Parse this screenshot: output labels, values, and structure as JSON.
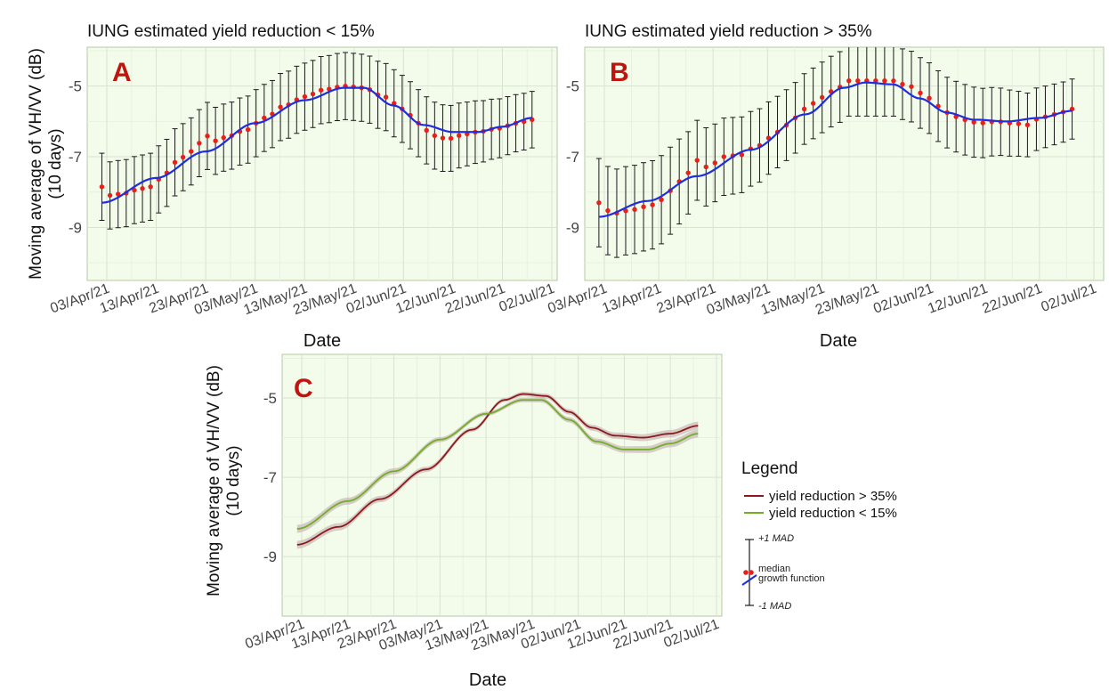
{
  "colors": {
    "panel_bg": "#f3fbea",
    "grid_major": "#d9e3d2",
    "grid_minor": "#e8f0e1",
    "panel_border": "#b4c8a6",
    "median_point": "#e8201a",
    "growth_line": "#1f2de0",
    "error_bar": "#1a1a1a",
    "panel_letter": "#c0140f",
    "series_gt35": "#8b1a1a",
    "series_lt15": "#72ad28",
    "ribbon": "#c9b8b8"
  },
  "shared": {
    "ylabel_line1": "Moving average of VH/VV (dB)",
    "ylabel_line2": "(10 days)",
    "xlabel": "Date"
  },
  "chart_data": [
    {
      "panel": "A",
      "type": "scatter",
      "title": "IUNG estimated yield reduction < 15%",
      "xlabel": "Date",
      "ylabel": "Moving average of VH/VV (dB) (10 days)",
      "x_ticks": [
        "03/Apr/21",
        "13/Apr/21",
        "23/Apr/21",
        "03/May/21",
        "13/May/21",
        "23/May/21",
        "02/Jun/21",
        "12/Jun/21",
        "22/Jun/21",
        "02/Jul/21"
      ],
      "y_ticks": [
        -5,
        -7,
        -9
      ],
      "x_range_days": [
        0,
        90
      ],
      "ylim": [
        -10.5,
        -3.9
      ],
      "median_knots": [
        [
          -1,
          -7.85
        ],
        [
          0,
          -8.1
        ],
        [
          3,
          -8.05
        ],
        [
          7,
          -7.9
        ],
        [
          9,
          -7.85
        ],
        [
          11,
          -7.6
        ],
        [
          14,
          -7.15
        ],
        [
          17,
          -6.85
        ],
        [
          19,
          -6.6
        ],
        [
          20,
          -6.4
        ],
        [
          22,
          -6.55
        ],
        [
          24,
          -6.45
        ],
        [
          28,
          -6.25
        ],
        [
          32,
          -5.9
        ],
        [
          36,
          -5.55
        ],
        [
          40,
          -5.3
        ],
        [
          44,
          -5.1
        ],
        [
          48,
          -5.0
        ],
        [
          52,
          -5.05
        ],
        [
          56,
          -5.3
        ],
        [
          60,
          -5.65
        ],
        [
          63,
          -6.05
        ],
        [
          66,
          -6.4
        ],
        [
          69,
          -6.5
        ],
        [
          71,
          -6.4
        ],
        [
          75,
          -6.3
        ],
        [
          79,
          -6.2
        ],
        [
          83,
          -6.05
        ],
        [
          86,
          -5.95
        ]
      ],
      "growth_knots": [
        [
          -1,
          -8.3
        ],
        [
          10,
          -7.6
        ],
        [
          20,
          -6.85
        ],
        [
          30,
          -6.05
        ],
        [
          40,
          -5.4
        ],
        [
          48,
          -5.05
        ],
        [
          52,
          -5.05
        ],
        [
          58,
          -5.55
        ],
        [
          64,
          -6.1
        ],
        [
          70,
          -6.3
        ],
        [
          75,
          -6.3
        ],
        [
          80,
          -6.15
        ],
        [
          86,
          -5.9
        ]
      ],
      "mad_knots": [
        [
          -1,
          0.95
        ],
        [
          20,
          0.95
        ],
        [
          45,
          0.95
        ],
        [
          65,
          0.95
        ],
        [
          86,
          0.8
        ]
      ],
      "n_points": 54,
      "error_bar_start_index": 0
    },
    {
      "panel": "B",
      "type": "scatter",
      "title": "IUNG estimated yield reduction > 35%",
      "xlabel": "Date",
      "ylabel": "Moving average of VH/VV (dB) (10 days)",
      "x_ticks": [
        "03/Apr/21",
        "13/Apr/21",
        "23/Apr/21",
        "03/May/21",
        "13/May/21",
        "23/May/21",
        "02/Jun/21",
        "12/Jun/21",
        "22/Jun/21",
        "02/Jul/21"
      ],
      "y_ticks": [
        -5,
        -7,
        -9
      ],
      "x_range_days": [
        0,
        90
      ],
      "ylim": [
        -10.5,
        -3.9
      ],
      "median_knots": [
        [
          -1,
          -8.3
        ],
        [
          0,
          -8.5
        ],
        [
          2,
          -8.6
        ],
        [
          5,
          -8.5
        ],
        [
          8,
          -8.4
        ],
        [
          11,
          -8.2
        ],
        [
          13,
          -7.8
        ],
        [
          15,
          -7.5
        ],
        [
          17,
          -7.1
        ],
        [
          19,
          -7.3
        ],
        [
          22,
          -7.0
        ],
        [
          25,
          -6.95
        ],
        [
          28,
          -6.7
        ],
        [
          32,
          -6.3
        ],
        [
          35,
          -5.9
        ],
        [
          38,
          -5.5
        ],
        [
          42,
          -5.15
        ],
        [
          45,
          -4.85
        ],
        [
          50,
          -4.85
        ],
        [
          53,
          -4.85
        ],
        [
          56,
          -5.0
        ],
        [
          59,
          -5.25
        ],
        [
          61,
          -5.55
        ],
        [
          63,
          -5.75
        ],
        [
          66,
          -5.95
        ],
        [
          69,
          -6.05
        ],
        [
          72,
          -6.0
        ],
        [
          75,
          -6.05
        ],
        [
          78,
          -6.1
        ],
        [
          80,
          -5.9
        ],
        [
          83,
          -5.8
        ],
        [
          86,
          -5.65
        ]
      ],
      "growth_knots": [
        [
          -1,
          -8.7
        ],
        [
          8,
          -8.25
        ],
        [
          17,
          -7.55
        ],
        [
          27,
          -6.8
        ],
        [
          37,
          -5.8
        ],
        [
          44,
          -5.05
        ],
        [
          48,
          -4.9
        ],
        [
          53,
          -4.95
        ],
        [
          58,
          -5.35
        ],
        [
          63,
          -5.75
        ],
        [
          68,
          -5.95
        ],
        [
          74,
          -6.0
        ],
        [
          80,
          -5.9
        ],
        [
          86,
          -5.7
        ]
      ],
      "mad_knots": [
        [
          -1,
          1.25
        ],
        [
          10,
          1.25
        ],
        [
          20,
          1.1
        ],
        [
          35,
          1.0
        ],
        [
          48,
          1.0
        ],
        [
          65,
          1.0
        ],
        [
          86,
          0.85
        ]
      ],
      "n_points": 54,
      "error_bar_start_index": 0
    },
    {
      "panel": "C",
      "type": "line",
      "xlabel": "Date",
      "ylabel": "Moving average of VH/VV (dB) (10 days)",
      "x_ticks": [
        "03/Apr/21",
        "13/Apr/21",
        "23/Apr/21",
        "03/May/21",
        "13/May/21",
        "23/May/21",
        "02/Jun/21",
        "12/Jun/21",
        "22/Jun/21",
        "02/Jul/21"
      ],
      "y_ticks": [
        -5,
        -7,
        -9
      ],
      "x_range_days": [
        0,
        90
      ],
      "ylim": [
        -10.5,
        -3.9
      ],
      "series": [
        {
          "name": "yield reduction > 35%",
          "color": "#8b1a1a",
          "knots": [
            [
              -1,
              -8.7
            ],
            [
              8,
              -8.25
            ],
            [
              17,
              -7.55
            ],
            [
              27,
              -6.8
            ],
            [
              37,
              -5.8
            ],
            [
              44,
              -5.05
            ],
            [
              48,
              -4.9
            ],
            [
              53,
              -4.95
            ],
            [
              58,
              -5.35
            ],
            [
              63,
              -5.75
            ],
            [
              68,
              -5.95
            ],
            [
              74,
              -6.0
            ],
            [
              80,
              -5.9
            ],
            [
              86,
              -5.7
            ]
          ]
        },
        {
          "name": "yield reduction < 15%",
          "color": "#72ad28",
          "knots": [
            [
              -1,
              -8.3
            ],
            [
              10,
              -7.6
            ],
            [
              20,
              -6.85
            ],
            [
              30,
              -6.05
            ],
            [
              40,
              -5.4
            ],
            [
              48,
              -5.05
            ],
            [
              52,
              -5.05
            ],
            [
              58,
              -5.55
            ],
            [
              64,
              -6.1
            ],
            [
              70,
              -6.3
            ],
            [
              75,
              -6.3
            ],
            [
              80,
              -6.15
            ],
            [
              86,
              -5.9
            ]
          ]
        }
      ]
    }
  ],
  "legend": {
    "title": "Legend",
    "entries": [
      "yield reduction > 35%",
      "yield reduction < 15%"
    ],
    "key_plus": "+1 MAD",
    "key_median": "median",
    "key_growth": "growth function",
    "key_minus": "-1 MAD"
  }
}
